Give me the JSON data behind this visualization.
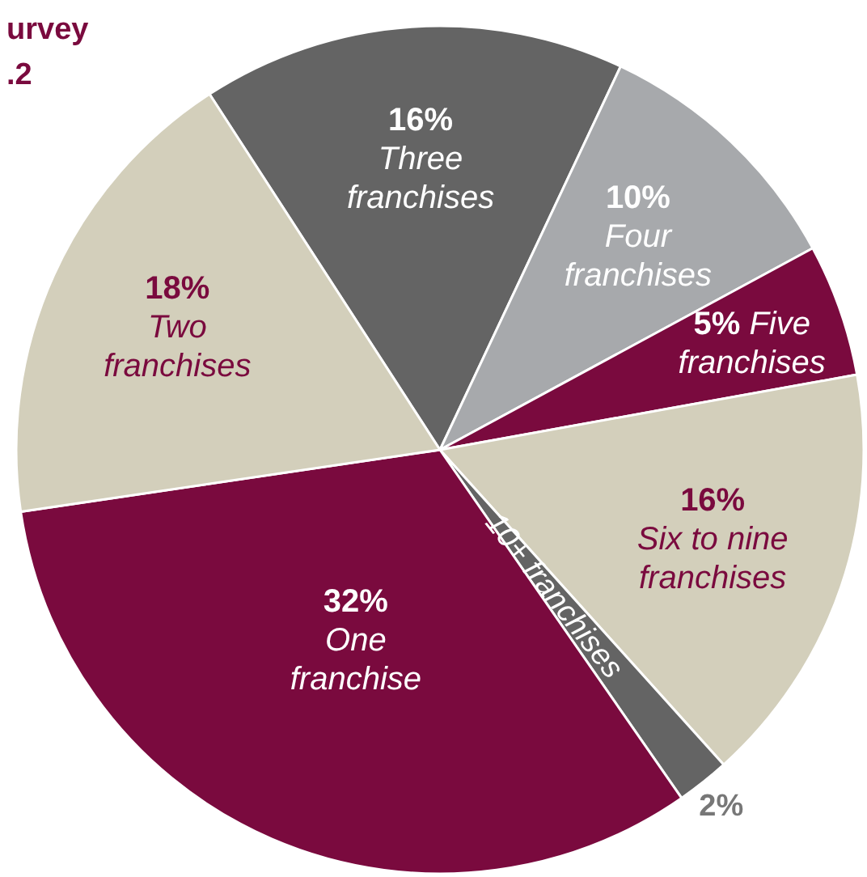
{
  "chart_data": {
    "type": "pie",
    "title": "urvey",
    "subtitle": ".2",
    "categories": [
      "Three franchises",
      "Four franchises",
      "Five franchises",
      "Six to nine franchises",
      "10+ franchises",
      "One franchise",
      "Two franchises"
    ],
    "values": [
      16,
      10,
      5,
      16,
      2,
      32,
      18
    ],
    "colors": [
      "#646464",
      "#a7a9ac",
      "#7a0a3e",
      "#d3cfbb",
      "#646464",
      "#7a0a3e",
      "#d3cfbb"
    ],
    "value_labels": [
      "16%",
      "10%",
      "5%",
      "16%",
      "2%",
      "32%",
      "18%"
    ]
  }
}
